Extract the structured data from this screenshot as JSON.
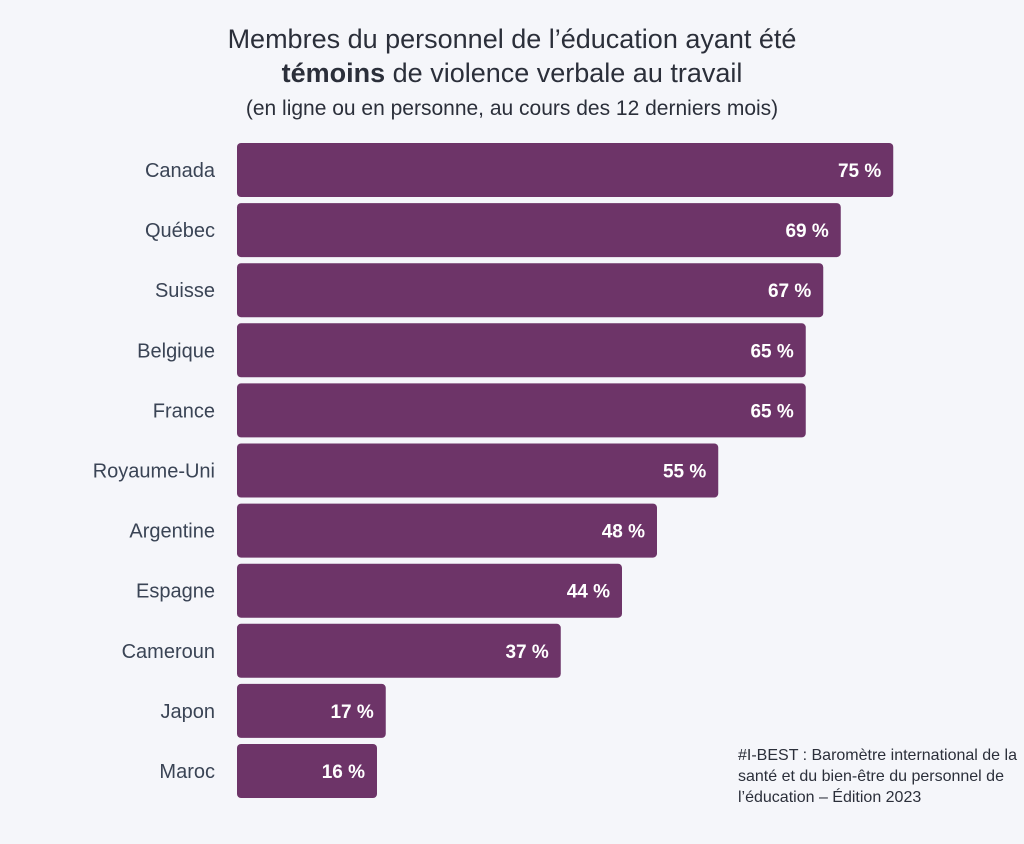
{
  "chart_data": {
    "type": "bar",
    "orientation": "horizontal",
    "title_line1": "Membres du personnel de l’éducation ayant été",
    "title_line2_bold": "témoins",
    "title_line2_rest": " de violence verbale au travail",
    "subtitle": "(en ligne ou en personne, au cours des 12 derniers mois)",
    "categories": [
      "Canada",
      "Québec",
      "Suisse",
      "Belgique",
      "France",
      "Royaume-Uni",
      "Argentine",
      "Espagne",
      "Cameroun",
      "Japon",
      "Maroc"
    ],
    "values": [
      75,
      69,
      67,
      65,
      65,
      55,
      48,
      44,
      37,
      17,
      16
    ],
    "value_labels": [
      "75 %",
      "69 %",
      "67 %",
      "65 %",
      "65 %",
      "55 %",
      "48 %",
      "44 %",
      "37 %",
      "17 %",
      "16 %"
    ],
    "xlim": [
      0,
      100
    ],
    "grid": false,
    "legend": "none",
    "bar_color": "#6d3468"
  },
  "source_note": "#I-BEST : Baromètre international de la santé et du bien-être du personnel de l’éducation – Édition 2023"
}
